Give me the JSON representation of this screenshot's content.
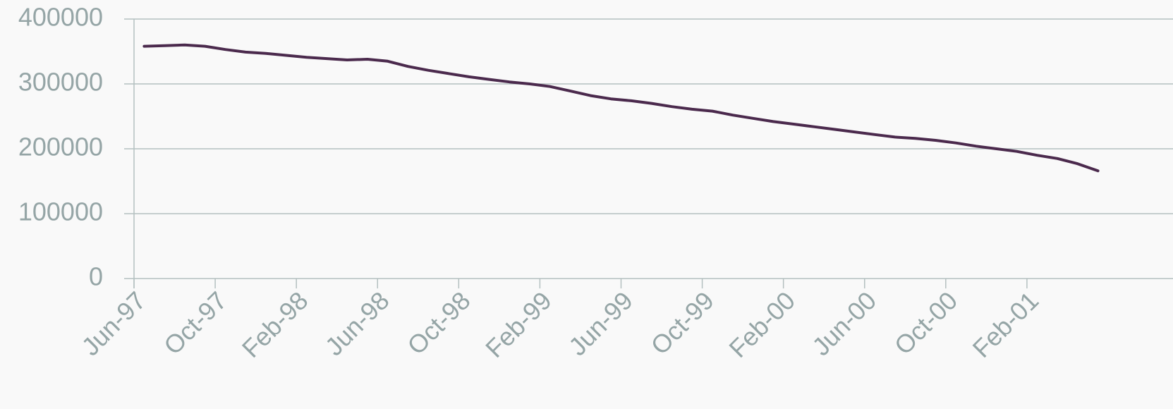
{
  "chart_data": {
    "type": "line",
    "categories": [
      "Jun-97",
      null,
      null,
      null,
      "Oct-97",
      null,
      null,
      null,
      "Feb-98",
      null,
      null,
      null,
      "Jun-98",
      null,
      null,
      null,
      "Oct-98",
      null,
      null,
      null,
      "Feb-99",
      null,
      null,
      null,
      "Jun-99",
      null,
      null,
      null,
      "Oct-99",
      null,
      null,
      null,
      "Feb-00",
      null,
      null,
      null,
      "Jun-00",
      null,
      null,
      null,
      "Oct-00",
      null,
      null,
      null,
      "Feb-01",
      null,
      null,
      null
    ],
    "series": [
      {
        "color": "#4b2a4d",
        "values": [
          358000,
          359000,
          360000,
          358000,
          353000,
          349000,
          347000,
          344000,
          341000,
          339000,
          337000,
          338000,
          335000,
          327000,
          321000,
          316000,
          311000,
          307000,
          303000,
          300000,
          296000,
          289000,
          282000,
          277000,
          274000,
          270000,
          265000,
          261000,
          258000,
          252000,
          247000,
          242000,
          238000,
          234000,
          230000,
          226000,
          222000,
          218000,
          216000,
          213000,
          209000,
          204000,
          200000,
          196000,
          190000,
          185000,
          177000,
          166000
        ]
      }
    ],
    "ylim": [
      0,
      400000
    ],
    "yticks": [
      0,
      100000,
      200000,
      300000,
      400000
    ],
    "grid": true
  }
}
